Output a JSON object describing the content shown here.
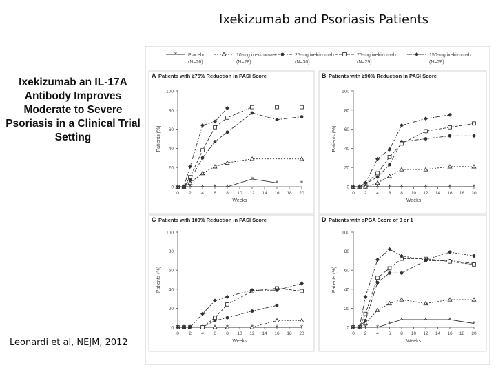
{
  "slide": {
    "title": "Ixekizumab and Psoriasis Patients",
    "subtitle": "Ixekizumab an IL-17A Antibody Improves Moderate to Severe Psoriasis in a Clinical Trial Setting",
    "citation": "Leonardi et al, NEJM, 2012"
  },
  "legend": [
    {
      "name": "Placebo",
      "n": "(N=26)",
      "marker": "star"
    },
    {
      "name": "10-mg ixekizumab",
      "n": "(N=28)",
      "marker": "triangle"
    },
    {
      "name": "25-mg ixekizumab",
      "n": "(N=30)",
      "marker": "dot"
    },
    {
      "name": "75-mg ixekizumab",
      "n": "(N=29)",
      "marker": "square"
    },
    {
      "name": "150-mg ixekizumab",
      "n": "(N=28)",
      "marker": "diamond"
    }
  ],
  "chart_data": [
    {
      "type": "line",
      "panel": "A",
      "title": "Patients with ≥75% Reduction in PASI Score",
      "xlabel": "Weeks",
      "ylabel": "Patients (%)",
      "x": [
        0,
        1,
        2,
        4,
        6,
        8,
        12,
        16,
        20
      ],
      "xlim": [
        0,
        20
      ],
      "ylim": [
        0,
        100
      ],
      "xticks": [
        "0",
        "2",
        "4",
        "6",
        "8",
        "10",
        "12",
        "14",
        "16",
        "18",
        "20"
      ],
      "yticks": [
        "0",
        "20",
        "40",
        "60",
        "80",
        "100"
      ],
      "series": [
        {
          "name": "Placebo",
          "values": [
            0,
            0,
            0,
            0,
            0,
            0,
            8,
            4,
            4
          ]
        },
        {
          "name": "10-mg ixekizumab",
          "values": [
            0,
            0,
            4,
            14,
            21,
            25,
            29,
            null,
            29
          ]
        },
        {
          "name": "25-mg ixekizumab",
          "values": [
            0,
            0,
            7,
            30,
            47,
            57,
            77,
            70,
            73
          ]
        },
        {
          "name": "75-mg ixekizumab",
          "values": [
            0,
            0,
            10,
            38,
            62,
            72,
            83,
            83,
            83
          ]
        },
        {
          "name": "150-mg ixekizumab",
          "values": [
            0,
            0,
            21,
            64,
            68,
            82,
            null,
            null,
            null
          ]
        }
      ]
    },
    {
      "type": "line",
      "panel": "B",
      "title": "Patients with ≥90% Reduction in PASI Score",
      "xlabel": "Weeks",
      "ylabel": "Patients (%)",
      "x": [
        0,
        1,
        2,
        4,
        6,
        8,
        12,
        16,
        20
      ],
      "xlim": [
        0,
        20
      ],
      "ylim": [
        0,
        100
      ],
      "xticks": [
        "0",
        "2",
        "4",
        "6",
        "8",
        "10",
        "12",
        "14",
        "16",
        "18",
        "20"
      ],
      "yticks": [
        "0",
        "20",
        "40",
        "60",
        "80",
        "100"
      ],
      "series": [
        {
          "name": "Placebo",
          "values": [
            0,
            0,
            0,
            0,
            0,
            0,
            0,
            0,
            0
          ]
        },
        {
          "name": "10-mg ixekizumab",
          "values": [
            0,
            0,
            0,
            4,
            11,
            18,
            18,
            21,
            21
          ]
        },
        {
          "name": "25-mg ixekizumab",
          "values": [
            0,
            0,
            3,
            10,
            23,
            47,
            50,
            53,
            53
          ]
        },
        {
          "name": "75-mg ixekizumab",
          "values": [
            0,
            0,
            3,
            14,
            31,
            45,
            58,
            62,
            66
          ]
        },
        {
          "name": "150-mg ixekizumab",
          "values": [
            0,
            0,
            4,
            29,
            39,
            64,
            71,
            75,
            null
          ]
        }
      ]
    },
    {
      "type": "line",
      "panel": "C",
      "title": "Patients with 100% Reduction in PASI Score",
      "xlabel": "Weeks",
      "ylabel": "Patients (%)",
      "x": [
        0,
        1,
        2,
        4,
        6,
        8,
        12,
        16,
        20
      ],
      "xlim": [
        0,
        20
      ],
      "ylim": [
        0,
        100
      ],
      "xticks": [
        "0",
        "2",
        "4",
        "6",
        "8",
        "10",
        "12",
        "14",
        "16",
        "18",
        "20"
      ],
      "yticks": [
        "0",
        "20",
        "40",
        "60",
        "80",
        "100"
      ],
      "series": [
        {
          "name": "Placebo",
          "values": [
            0,
            0,
            0,
            0,
            0,
            0,
            0,
            0,
            0
          ]
        },
        {
          "name": "10-mg ixekizumab",
          "values": [
            0,
            0,
            0,
            0,
            0,
            0,
            0,
            7,
            7
          ]
        },
        {
          "name": "25-mg ixekizumab",
          "values": [
            0,
            0,
            0,
            0,
            7,
            10,
            17,
            23,
            null
          ]
        },
        {
          "name": "75-mg ixekizumab",
          "values": [
            0,
            0,
            0,
            0,
            10,
            24,
            38,
            41,
            38
          ]
        },
        {
          "name": "150-mg ixekizumab",
          "values": [
            0,
            0,
            0,
            14,
            28,
            32,
            39,
            39,
            46
          ]
        }
      ]
    },
    {
      "type": "line",
      "panel": "D",
      "title": "Patients with sPGA Score of 0 or 1",
      "xlabel": "Weeks",
      "ylabel": "Patients (%)",
      "x": [
        0,
        1,
        2,
        4,
        6,
        8,
        12,
        16,
        20
      ],
      "xlim": [
        0,
        20
      ],
      "ylim": [
        0,
        100
      ],
      "xticks": [
        "0",
        "2",
        "4",
        "6",
        "8",
        "10",
        "12",
        "14",
        "16",
        "18",
        "20"
      ],
      "yticks": [
        "0",
        "20",
        "40",
        "60",
        "80",
        "100"
      ],
      "series": [
        {
          "name": "Placebo",
          "values": [
            0,
            0,
            0,
            0,
            4,
            8,
            8,
            8,
            4
          ]
        },
        {
          "name": "10-mg ixekizumab",
          "values": [
            0,
            0,
            4,
            18,
            25,
            29,
            25,
            29,
            29
          ]
        },
        {
          "name": "25-mg ixekizumab",
          "values": [
            0,
            0,
            7,
            47,
            57,
            57,
            70,
            70,
            67
          ]
        },
        {
          "name": "75-mg ixekizumab",
          "values": [
            0,
            0,
            14,
            52,
            62,
            72,
            72,
            69,
            66
          ]
        },
        {
          "name": "150-mg ixekizumab",
          "values": [
            0,
            0,
            32,
            71,
            82,
            75,
            71,
            79,
            75
          ]
        }
      ]
    }
  ],
  "colors": {
    "ink": "#333333",
    "axis": "#555555",
    "text": "#444444",
    "title_text": "#222222",
    "border": "#cccccc",
    "bg": "#ffffff"
  }
}
